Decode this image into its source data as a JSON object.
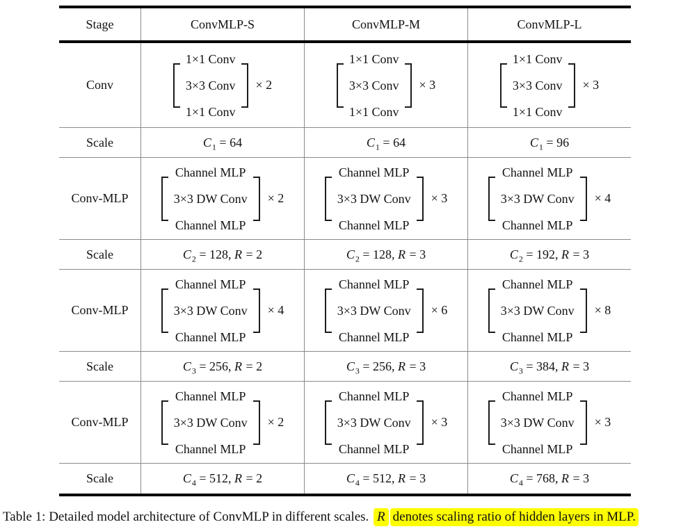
{
  "colors": {
    "rule_thick": "#000000",
    "rule_thin": "#8a8a8a",
    "text": "#111111",
    "highlight": "#fdfd01"
  },
  "table": {
    "headers": [
      "Stage",
      "ConvMLP-S",
      "ConvMLP-M",
      "ConvMLP-L"
    ],
    "rows": [
      {
        "kind": "block",
        "stage": "Conv",
        "cells": [
          {
            "lines": [
              "1×1 Conv",
              "3×3 Conv",
              "1×1 Conv"
            ],
            "mult": "× 2"
          },
          {
            "lines": [
              "1×1 Conv",
              "3×3 Conv",
              "1×1 Conv"
            ],
            "mult": "× 3"
          },
          {
            "lines": [
              "1×1 Conv",
              "3×3 Conv",
              "1×1 Conv"
            ],
            "mult": "× 3"
          }
        ]
      },
      {
        "kind": "scale",
        "stage": "Scale",
        "cells": [
          {
            "segments": [
              {
                "style": "var",
                "text": "C"
              },
              {
                "style": "sub",
                "text": "1"
              },
              {
                "style": "plain",
                "text": " = 64"
              }
            ]
          },
          {
            "segments": [
              {
                "style": "var",
                "text": "C"
              },
              {
                "style": "sub",
                "text": "1"
              },
              {
                "style": "plain",
                "text": " = 64"
              }
            ]
          },
          {
            "segments": [
              {
                "style": "var",
                "text": "C"
              },
              {
                "style": "sub",
                "text": "1"
              },
              {
                "style": "plain",
                "text": " = 96"
              }
            ]
          }
        ]
      },
      {
        "kind": "block",
        "stage": "Conv-MLP",
        "cells": [
          {
            "lines": [
              "Channel MLP",
              "3×3 DW Conv",
              "Channel MLP"
            ],
            "mult": "× 2"
          },
          {
            "lines": [
              "Channel MLP",
              "3×3 DW Conv",
              "Channel MLP"
            ],
            "mult": "× 3"
          },
          {
            "lines": [
              "Channel MLP",
              "3×3 DW Conv",
              "Channel MLP"
            ],
            "mult": "× 4"
          }
        ]
      },
      {
        "kind": "scale",
        "stage": "Scale",
        "cells": [
          {
            "segments": [
              {
                "style": "var",
                "text": "C"
              },
              {
                "style": "sub",
                "text": "2"
              },
              {
                "style": "plain",
                "text": " = 128, "
              },
              {
                "style": "var",
                "text": "R"
              },
              {
                "style": "plain",
                "text": " = 2"
              }
            ]
          },
          {
            "segments": [
              {
                "style": "var",
                "text": "C"
              },
              {
                "style": "sub",
                "text": "2"
              },
              {
                "style": "plain",
                "text": " = 128, "
              },
              {
                "style": "var",
                "text": "R"
              },
              {
                "style": "plain",
                "text": " = 3"
              }
            ]
          },
          {
            "segments": [
              {
                "style": "var",
                "text": "C"
              },
              {
                "style": "sub",
                "text": "2"
              },
              {
                "style": "plain",
                "text": " = 192, "
              },
              {
                "style": "var",
                "text": "R"
              },
              {
                "style": "plain",
                "text": " = 3"
              }
            ]
          }
        ]
      },
      {
        "kind": "block",
        "stage": "Conv-MLP",
        "cells": [
          {
            "lines": [
              "Channel MLP",
              "3×3 DW Conv",
              "Channel MLP"
            ],
            "mult": "× 4"
          },
          {
            "lines": [
              "Channel MLP",
              "3×3 DW Conv",
              "Channel MLP"
            ],
            "mult": "× 6"
          },
          {
            "lines": [
              "Channel MLP",
              "3×3 DW Conv",
              "Channel MLP"
            ],
            "mult": "× 8"
          }
        ]
      },
      {
        "kind": "scale",
        "stage": "Scale",
        "cells": [
          {
            "segments": [
              {
                "style": "var",
                "text": "C"
              },
              {
                "style": "sub",
                "text": "3"
              },
              {
                "style": "plain",
                "text": " = 256, "
              },
              {
                "style": "var",
                "text": "R"
              },
              {
                "style": "plain",
                "text": " = 2"
              }
            ]
          },
          {
            "segments": [
              {
                "style": "var",
                "text": "C"
              },
              {
                "style": "sub",
                "text": "3"
              },
              {
                "style": "plain",
                "text": " = 256, "
              },
              {
                "style": "var",
                "text": "R"
              },
              {
                "style": "plain",
                "text": " = 3"
              }
            ]
          },
          {
            "segments": [
              {
                "style": "var",
                "text": "C"
              },
              {
                "style": "sub",
                "text": "3"
              },
              {
                "style": "plain",
                "text": " = 384, "
              },
              {
                "style": "var",
                "text": "R"
              },
              {
                "style": "plain",
                "text": " = 3"
              }
            ]
          }
        ]
      },
      {
        "kind": "block",
        "stage": "Conv-MLP",
        "cells": [
          {
            "lines": [
              "Channel MLP",
              "3×3 DW Conv",
              "Channel MLP"
            ],
            "mult": "× 2"
          },
          {
            "lines": [
              "Channel MLP",
              "3×3 DW Conv",
              "Channel MLP"
            ],
            "mult": "× 3"
          },
          {
            "lines": [
              "Channel MLP",
              "3×3 DW Conv",
              "Channel MLP"
            ],
            "mult": "× 3"
          }
        ]
      },
      {
        "kind": "scale",
        "stage": "Scale",
        "cells": [
          {
            "segments": [
              {
                "style": "var",
                "text": "C"
              },
              {
                "style": "sub",
                "text": "4"
              },
              {
                "style": "plain",
                "text": " = 512, "
              },
              {
                "style": "var",
                "text": "R"
              },
              {
                "style": "plain",
                "text": " = 2"
              }
            ]
          },
          {
            "segments": [
              {
                "style": "var",
                "text": "C"
              },
              {
                "style": "sub",
                "text": "4"
              },
              {
                "style": "plain",
                "text": " = 512, "
              },
              {
                "style": "var",
                "text": "R"
              },
              {
                "style": "plain",
                "text": " = 3"
              }
            ]
          },
          {
            "segments": [
              {
                "style": "var",
                "text": "C"
              },
              {
                "style": "sub",
                "text": "4"
              },
              {
                "style": "plain",
                "text": " = 768, "
              },
              {
                "style": "var",
                "text": "R"
              },
              {
                "style": "plain",
                "text": " = 3"
              }
            ]
          }
        ]
      }
    ]
  },
  "caption": {
    "segments": [
      {
        "style": "plain",
        "highlight": false,
        "text": "Table 1: Detailed model architecture of ConvMLP in different scales. "
      },
      {
        "style": "var",
        "highlight": true,
        "text": "R"
      },
      {
        "style": "plain",
        "highlight": true,
        "text": "denotes scaling ratio of hidden layers in MLP."
      }
    ]
  }
}
